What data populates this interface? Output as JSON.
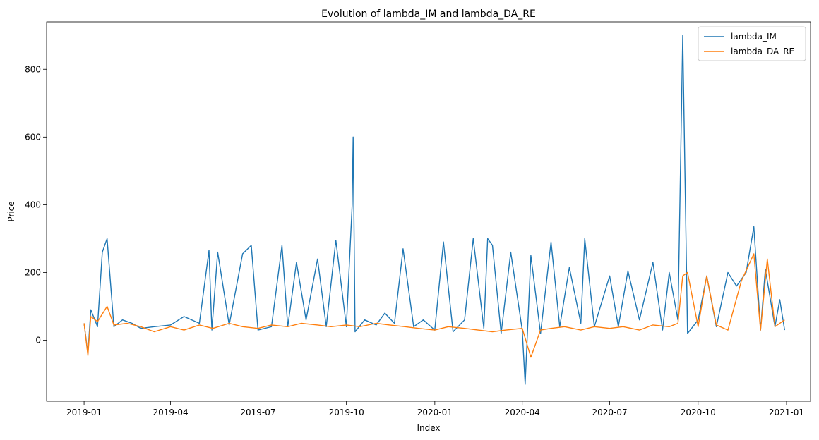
{
  "chart_data": {
    "type": "line",
    "title": "Evolution of lambda_IM and lambda_DA_RE",
    "xlabel": "Index",
    "ylabel": "Price",
    "xlim": [
      "2018-11-23",
      "2021-01-26"
    ],
    "ylim": [
      -180,
      940
    ],
    "x_ticks": [
      "2019-01",
      "2019-04",
      "2019-07",
      "2019-10",
      "2020-01",
      "2020-04",
      "2020-07",
      "2020-10",
      "2021-01"
    ],
    "y_ticks": [
      0,
      200,
      400,
      600,
      800
    ],
    "grid": false,
    "legend_position": "top-right",
    "series": [
      {
        "name": "lambda_IM",
        "color": "#1f77b4",
        "x": [
          "2019-01-01",
          "2019-01-05",
          "2019-01-08",
          "2019-01-15",
          "2019-01-20",
          "2019-01-25",
          "2019-02-01",
          "2019-02-10",
          "2019-02-20",
          "2019-03-01",
          "2019-03-15",
          "2019-04-01",
          "2019-04-15",
          "2019-05-01",
          "2019-05-11",
          "2019-05-14",
          "2019-05-20",
          "2019-06-01",
          "2019-06-15",
          "2019-06-24",
          "2019-07-01",
          "2019-07-15",
          "2019-07-26",
          "2019-08-01",
          "2019-08-10",
          "2019-08-20",
          "2019-09-01",
          "2019-09-10",
          "2019-09-20",
          "2019-10-01",
          "2019-10-07",
          "2019-10-08",
          "2019-10-10",
          "2019-10-20",
          "2019-11-01",
          "2019-11-10",
          "2019-11-20",
          "2019-11-29",
          "2019-12-10",
          "2019-12-20",
          "2020-01-01",
          "2020-01-10",
          "2020-01-20",
          "2020-02-01",
          "2020-02-10",
          "2020-02-21",
          "2020-02-25",
          "2020-03-01",
          "2020-03-10",
          "2020-03-20",
          "2020-04-01",
          "2020-04-04",
          "2020-04-10",
          "2020-04-20",
          "2020-05-01",
          "2020-05-10",
          "2020-05-20",
          "2020-06-01",
          "2020-06-05",
          "2020-06-15",
          "2020-07-01",
          "2020-07-10",
          "2020-07-20",
          "2020-08-01",
          "2020-08-15",
          "2020-08-25",
          "2020-09-01",
          "2020-09-10",
          "2020-09-15",
          "2020-09-20",
          "2020-10-01",
          "2020-10-10",
          "2020-10-20",
          "2020-11-01",
          "2020-11-10",
          "2020-11-20",
          "2020-11-28",
          "2020-12-05",
          "2020-12-10",
          "2020-12-20",
          "2020-12-25",
          "2020-12-30"
        ],
        "values": [
          50,
          -40,
          90,
          40,
          260,
          300,
          40,
          60,
          50,
          35,
          40,
          45,
          70,
          50,
          265,
          30,
          260,
          45,
          255,
          280,
          30,
          40,
          280,
          40,
          230,
          60,
          240,
          40,
          295,
          40,
          400,
          600,
          25,
          60,
          45,
          80,
          50,
          270,
          40,
          60,
          30,
          290,
          25,
          60,
          300,
          35,
          300,
          280,
          20,
          260,
          30,
          -130,
          250,
          20,
          290,
          40,
          215,
          50,
          300,
          40,
          190,
          40,
          205,
          60,
          230,
          30,
          200,
          60,
          900,
          20,
          60,
          190,
          40,
          200,
          160,
          200,
          335,
          30,
          210,
          40,
          120,
          30
        ]
      },
      {
        "name": "lambda_DA_RE",
        "color": "#ff7f0e",
        "x": [
          "2019-01-01",
          "2019-01-05",
          "2019-01-08",
          "2019-01-15",
          "2019-01-25",
          "2019-02-01",
          "2019-02-15",
          "2019-03-01",
          "2019-03-15",
          "2019-04-01",
          "2019-04-15",
          "2019-05-01",
          "2019-05-15",
          "2019-06-01",
          "2019-06-15",
          "2019-07-01",
          "2019-07-15",
          "2019-08-01",
          "2019-08-15",
          "2019-09-01",
          "2019-09-15",
          "2019-10-01",
          "2019-10-15",
          "2019-11-01",
          "2019-11-15",
          "2019-12-01",
          "2019-12-15",
          "2020-01-01",
          "2020-01-15",
          "2020-02-01",
          "2020-02-15",
          "2020-03-01",
          "2020-03-15",
          "2020-04-01",
          "2020-04-10",
          "2020-04-20",
          "2020-05-01",
          "2020-05-15",
          "2020-06-01",
          "2020-06-15",
          "2020-07-01",
          "2020-07-15",
          "2020-08-01",
          "2020-08-15",
          "2020-09-01",
          "2020-09-10",
          "2020-09-15",
          "2020-09-20",
          "2020-10-01",
          "2020-10-10",
          "2020-10-20",
          "2020-11-01",
          "2020-11-15",
          "2020-11-28",
          "2020-12-05",
          "2020-12-12",
          "2020-12-20",
          "2020-12-30"
        ],
        "values": [
          50,
          -45,
          70,
          55,
          100,
          45,
          50,
          40,
          25,
          40,
          30,
          45,
          35,
          50,
          40,
          35,
          45,
          40,
          50,
          45,
          40,
          45,
          40,
          50,
          45,
          40,
          35,
          30,
          40,
          35,
          30,
          25,
          30,
          35,
          -50,
          30,
          35,
          40,
          30,
          40,
          35,
          40,
          30,
          45,
          40,
          50,
          190,
          200,
          40,
          190,
          45,
          30,
          175,
          255,
          30,
          240,
          40,
          60
        ]
      }
    ]
  }
}
